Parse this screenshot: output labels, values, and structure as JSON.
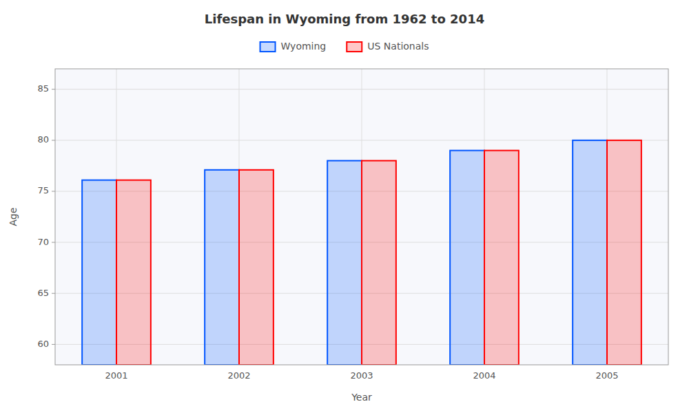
{
  "chart_data": {
    "type": "bar",
    "title": "Lifespan in Wyoming from 1962 to 2014",
    "xlabel": "Year",
    "ylabel": "Age",
    "categories": [
      "2001",
      "2002",
      "2003",
      "2004",
      "2005"
    ],
    "series": [
      {
        "name": "Wyoming",
        "color": "#0055ff",
        "values": [
          76.1,
          77.1,
          78.0,
          79.0,
          80.0
        ]
      },
      {
        "name": "US Nationals",
        "color": "#ff0000",
        "values": [
          76.1,
          77.1,
          78.0,
          79.0,
          80.0
        ]
      }
    ],
    "ylim": [
      58,
      87
    ],
    "yticks": [
      60,
      65,
      70,
      75,
      80,
      85
    ],
    "grid": true,
    "legend": "top"
  }
}
